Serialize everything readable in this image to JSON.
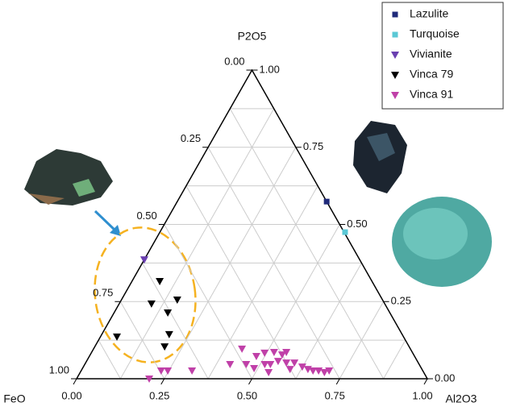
{
  "chart_data": {
    "type": "ternary",
    "axes": {
      "top": {
        "label": "P2O5",
        "ticks": [
          {
            "value": 0,
            "label": "0.00"
          },
          {
            "value": 0.25,
            "label": "0.25"
          },
          {
            "value": 0.5,
            "label": "0.50"
          },
          {
            "value": 0.75,
            "label": "0.75"
          },
          {
            "value": 1,
            "label": "1.00"
          }
        ]
      },
      "left": {
        "label": "FeO",
        "ticks": [
          {
            "value": 0,
            "label": "0.00"
          },
          {
            "value": 0.25,
            "label": "0.25"
          },
          {
            "value": 0.5,
            "label": "0.50"
          },
          {
            "value": 0.75,
            "label": "0.75"
          },
          {
            "value": 1,
            "label": "1.00"
          }
        ]
      },
      "right": {
        "label": "Al2O3",
        "ticks": [
          {
            "value": 0,
            "label": "0.00"
          },
          {
            "value": 0.25,
            "label": "0.25"
          },
          {
            "value": 0.5,
            "label": "0.50"
          },
          {
            "value": 0.75,
            "label": "0.75"
          },
          {
            "value": 1,
            "label": "1.00"
          }
        ]
      }
    },
    "minor_ticks": [
      0.125,
      0.375,
      0.625,
      0.875
    ],
    "grid": true,
    "legend": "top-right",
    "series": [
      {
        "name": "Lazulite",
        "color": "#1f2a7a",
        "marker": "square",
        "Al2O3": [
          0.426
        ],
        "P2O5": [
          0.574
        ]
      },
      {
        "name": "Turquoise",
        "color": "#5bc8d6",
        "marker": "square",
        "Al2O3": [
          0.528
        ],
        "P2O5": [
          0.475
        ]
      },
      {
        "name": "Vivianite",
        "color": "#6a3fb0",
        "marker": "triangle-down",
        "Al2O3": [
          0
        ],
        "P2O5": [
          0.386
        ]
      },
      {
        "name": "Vinca 79",
        "color": "#000000",
        "marker": "triangle-down",
        "Al2O3": [
          0.079,
          0.092,
          0.159,
          0.153,
          0.047,
          0.192,
          0.199
        ],
        "P2O5": [
          0.316,
          0.243,
          0.256,
          0.214,
          0.136,
          0.144,
          0.104
        ]
      },
      {
        "name": "Vinca 91",
        "color": "#c040a8",
        "marker": "triangle-down",
        "Al2O3": [
          0.207,
          0.228,
          0.247,
          0.316,
          0.414,
          0.423,
          0.46,
          0.476,
          0.494,
          0.52,
          0.547,
          0.555,
          0.489,
          0.513,
          0.529,
          0.546,
          0.572,
          0.593,
          0.595,
          0.624,
          0.644,
          0.661,
          0.677,
          0.696,
          0.707,
          0.537
        ],
        "P2O5": [
          0,
          0.026,
          0.026,
          0.026,
          0.047,
          0.097,
          0.047,
          0.073,
          0.084,
          0.086,
          0.078,
          0.086,
          0.034,
          0.047,
          0.047,
          0.057,
          0.052,
          0.031,
          0.052,
          0.039,
          0.031,
          0.026,
          0.026,
          0.021,
          0.026,
          0.021
        ]
      }
    ]
  }
}
